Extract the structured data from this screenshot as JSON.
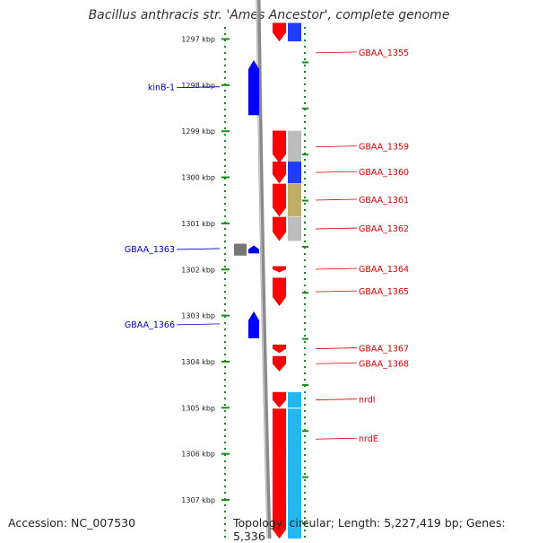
{
  "title": "Bacillus anthracis str. 'Ames Ancestor', complete genome",
  "footer": {
    "accession": "Accession: NC_007530",
    "topology": "Topology: circular; Length: 5,227,419 bp; Genes: 5,336"
  },
  "colors": {
    "backbone": "#8a8a8a",
    "ticks": "#1a8a1a",
    "minus_strand": "#0000ff",
    "plus_strand": "#ff0000",
    "cog_gray": "#bdbdbd",
    "cog_blue": "#1f3cff",
    "cog_khaki": "#bfae6a",
    "cog_cyan": "#22b8ee",
    "label_right": "#dd0000",
    "label_left": "#0000bb"
  },
  "scale": {
    "unit": "kbp",
    "ticks": [
      {
        "label": "1297 kbp",
        "kbp": 1297
      },
      {
        "label": "1298 kbp",
        "kbp": 1298
      },
      {
        "label": "1299 kbp",
        "kbp": 1299
      },
      {
        "label": "1300 kbp",
        "kbp": 1300
      },
      {
        "label": "1301 kbp",
        "kbp": 1301
      },
      {
        "label": "1302 kbp",
        "kbp": 1302
      },
      {
        "label": "1303 kbp",
        "kbp": 1303
      },
      {
        "label": "1304 kbp",
        "kbp": 1304
      },
      {
        "label": "1305 kbp",
        "kbp": 1305
      },
      {
        "label": "1306 kbp",
        "kbp": 1306
      },
      {
        "label": "1307 kbp",
        "kbp": 1307
      }
    ]
  },
  "genes": [
    {
      "name": "GBAA_1355",
      "strand": "+",
      "start_kbp": 1296.65,
      "end_kbp": 1297.05,
      "side": "right",
      "cog": "cog_blue"
    },
    {
      "name": "kinB-1",
      "strand": "-",
      "start_kbp": 1297.46,
      "end_kbp": 1298.65,
      "side": "left",
      "cog": ""
    },
    {
      "name": "GBAA_1359",
      "strand": "+",
      "start_kbp": 1298.99,
      "end_kbp": 1299.69,
      "side": "right",
      "cog": "cog_gray"
    },
    {
      "name": "GBAA_1360",
      "strand": "+",
      "start_kbp": 1299.66,
      "end_kbp": 1300.13,
      "side": "right",
      "cog": "cog_blue"
    },
    {
      "name": "GBAA_1361",
      "strand": "+",
      "start_kbp": 1300.14,
      "end_kbp": 1300.85,
      "side": "right",
      "cog": "cog_khaki"
    },
    {
      "name": "GBAA_1362",
      "strand": "+",
      "start_kbp": 1300.86,
      "end_kbp": 1301.38,
      "side": "right",
      "cog": "cog_gray"
    },
    {
      "name": "GBAA_1363",
      "strand": "-",
      "start_kbp": 1301.48,
      "end_kbp": 1301.65,
      "side": "left",
      "cog": ""
    },
    {
      "name": "GBAA_1364",
      "strand": "+",
      "start_kbp": 1301.93,
      "end_kbp": 1302.06,
      "side": "right",
      "cog": ""
    },
    {
      "name": "GBAA_1365",
      "strand": "+",
      "start_kbp": 1302.18,
      "end_kbp": 1302.79,
      "side": "right",
      "cog": ""
    },
    {
      "name": "GBAA_1366",
      "strand": "-",
      "start_kbp": 1302.91,
      "end_kbp": 1303.49,
      "side": "left",
      "cog": ""
    },
    {
      "name": "GBAA_1367",
      "strand": "+",
      "start_kbp": 1303.63,
      "end_kbp": 1303.81,
      "side": "right",
      "cog": ""
    },
    {
      "name": "GBAA_1368",
      "strand": "+",
      "start_kbp": 1303.88,
      "end_kbp": 1304.21,
      "side": "right",
      "cog": ""
    },
    {
      "name": "nrdI",
      "strand": "+",
      "start_kbp": 1304.66,
      "end_kbp": 1305.0,
      "side": "right",
      "cog": "cog_cyan"
    },
    {
      "name": "nrdE",
      "strand": "+",
      "start_kbp": 1305.02,
      "end_kbp": 1307.9,
      "side": "right",
      "cog": "cog_cyan"
    }
  ],
  "extra_left_features": [
    {
      "kbp_start": 1301.48,
      "kbp_end": 1301.66,
      "color": "#777777"
    }
  ]
}
